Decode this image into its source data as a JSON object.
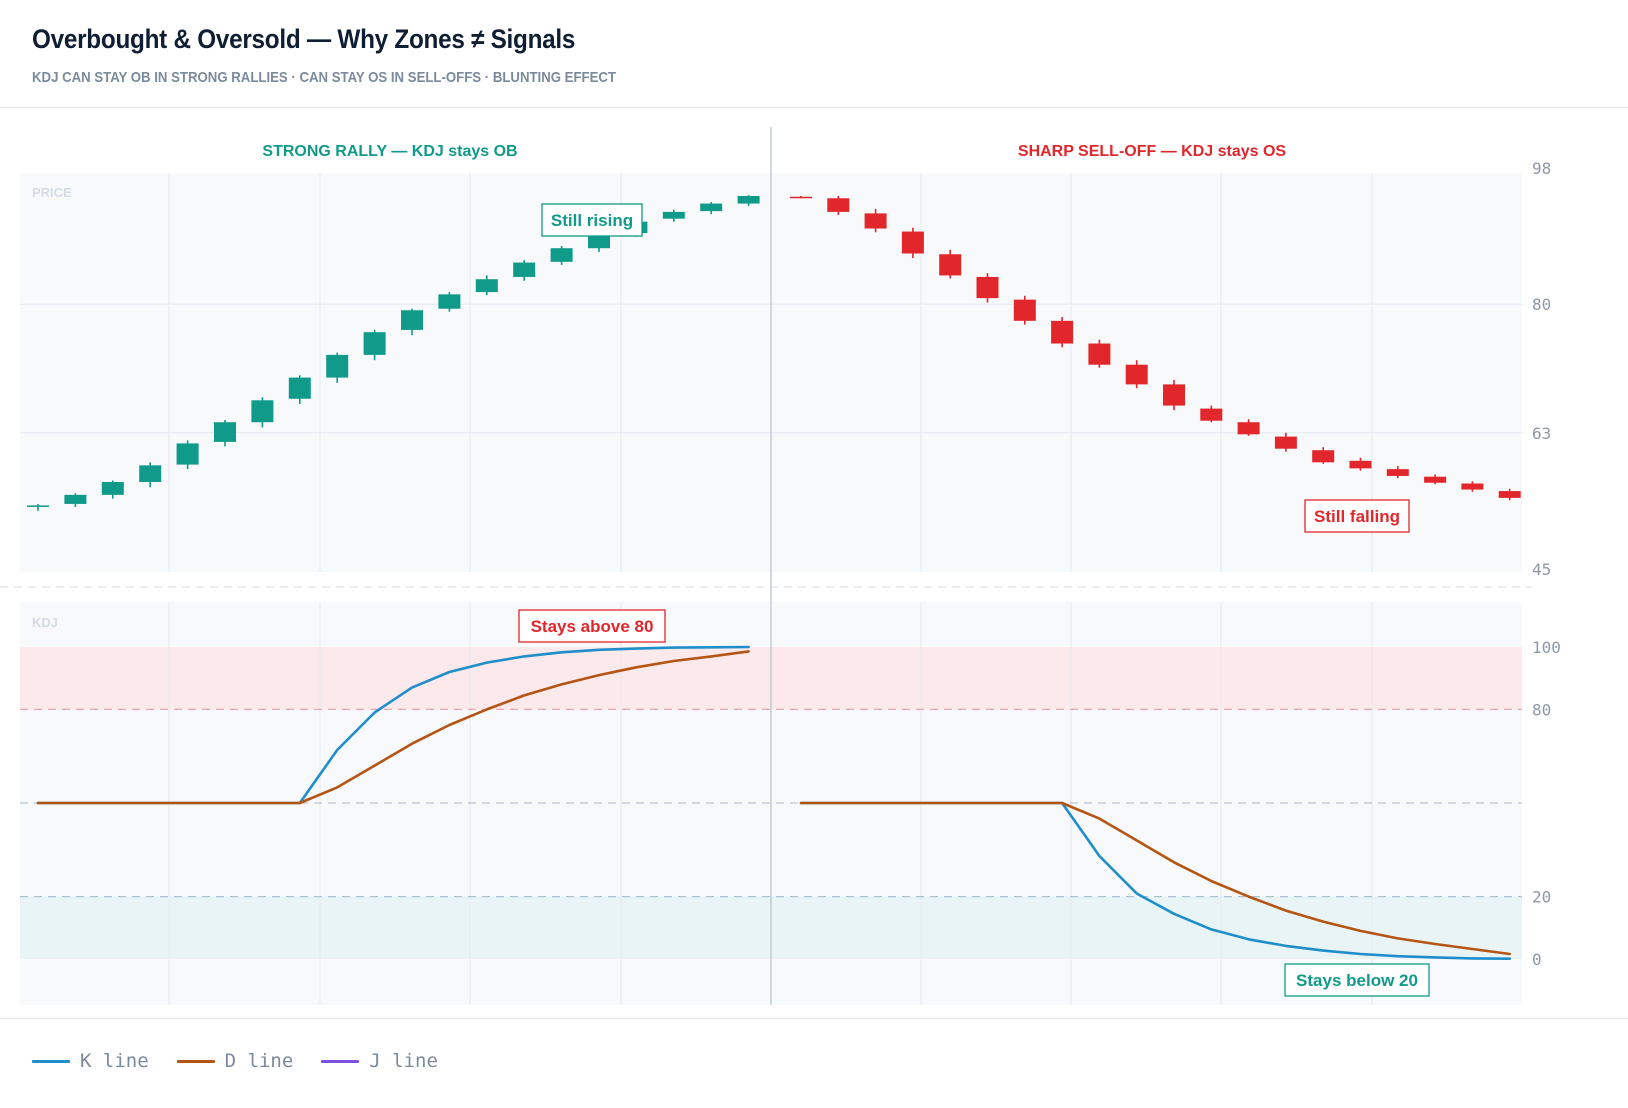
{
  "header": {
    "title": "Overbought & Oversold — Why Zones ≠ Signals",
    "subtitle": "KDJ CAN STAY OB IN STRONG RALLIES · CAN STAY OS IN SELL-OFFS · BLUNTING EFFECT"
  },
  "colors": {
    "up": "#109a89",
    "down": "#e2272c",
    "k_line": "#1f8ecb",
    "d_line": "#b45514",
    "j_line": "#7b4fe0",
    "ob_zone": "#fbe9ec",
    "os_zone": "#e8f4f6",
    "panel_bg": "#f7f9fb"
  },
  "legend": [
    {
      "label": "K line",
      "color": "#1f8ecb"
    },
    {
      "label": "D line",
      "color": "#b45514"
    },
    {
      "label": "J line",
      "color": "#7b4fe0"
    }
  ],
  "chart_data": [
    {
      "type": "candlestick",
      "panel": "price",
      "panel_label": "PRICE",
      "title_left": "STRONG RALLY — KDJ stays OB",
      "title_right": "SHARP SELL-OFF — KDJ stays OS",
      "ylim": [
        45,
        98
      ],
      "yticks": [
        98,
        80,
        63,
        45
      ],
      "rally": [
        {
          "o": 53.2,
          "h": 53.6,
          "l": 52.7,
          "c": 53.4
        },
        {
          "o": 53.6,
          "h": 55.0,
          "l": 53.2,
          "c": 54.8
        },
        {
          "o": 54.8,
          "h": 56.7,
          "l": 54.3,
          "c": 56.5
        },
        {
          "o": 56.5,
          "h": 59.1,
          "l": 55.8,
          "c": 58.7
        },
        {
          "o": 58.8,
          "h": 62.0,
          "l": 58.2,
          "c": 61.6
        },
        {
          "o": 61.8,
          "h": 64.7,
          "l": 61.2,
          "c": 64.4
        },
        {
          "o": 64.4,
          "h": 67.7,
          "l": 63.7,
          "c": 67.3
        },
        {
          "o": 67.5,
          "h": 70.6,
          "l": 66.8,
          "c": 70.3
        },
        {
          "o": 70.3,
          "h": 73.6,
          "l": 69.6,
          "c": 73.3
        },
        {
          "o": 73.3,
          "h": 76.6,
          "l": 72.6,
          "c": 76.3
        },
        {
          "o": 76.6,
          "h": 79.4,
          "l": 75.9,
          "c": 79.2
        },
        {
          "o": 79.4,
          "h": 81.6,
          "l": 79.0,
          "c": 81.3
        },
        {
          "o": 81.6,
          "h": 83.8,
          "l": 81.2,
          "c": 83.3
        },
        {
          "o": 83.6,
          "h": 85.8,
          "l": 83.1,
          "c": 85.5
        },
        {
          "o": 85.6,
          "h": 87.7,
          "l": 85.2,
          "c": 87.4
        },
        {
          "o": 87.4,
          "h": 89.6,
          "l": 86.9,
          "c": 89.3
        },
        {
          "o": 89.4,
          "h": 91.3,
          "l": 88.9,
          "c": 90.9
        },
        {
          "o": 91.3,
          "h": 92.5,
          "l": 90.9,
          "c": 92.2
        },
        {
          "o": 92.3,
          "h": 93.5,
          "l": 91.9,
          "c": 93.3
        },
        {
          "o": 93.3,
          "h": 94.4,
          "l": 93.0,
          "c": 94.3
        }
      ],
      "selloff": [
        {
          "o": 94.2,
          "h": 94.3,
          "l": 94.0,
          "c": 94.1
        },
        {
          "o": 94.0,
          "h": 94.3,
          "l": 91.8,
          "c": 92.2
        },
        {
          "o": 92.0,
          "h": 92.6,
          "l": 89.5,
          "c": 90.0
        },
        {
          "o": 89.6,
          "h": 90.1,
          "l": 86.1,
          "c": 86.7
        },
        {
          "o": 86.6,
          "h": 87.2,
          "l": 83.4,
          "c": 83.8
        },
        {
          "o": 83.6,
          "h": 84.1,
          "l": 80.2,
          "c": 80.8
        },
        {
          "o": 80.6,
          "h": 81.1,
          "l": 77.3,
          "c": 77.8
        },
        {
          "o": 77.8,
          "h": 78.3,
          "l": 74.3,
          "c": 74.8
        },
        {
          "o": 74.8,
          "h": 75.3,
          "l": 71.6,
          "c": 72.0
        },
        {
          "o": 72.0,
          "h": 72.6,
          "l": 68.9,
          "c": 69.4
        },
        {
          "o": 69.4,
          "h": 70.0,
          "l": 66.0,
          "c": 66.6
        },
        {
          "o": 66.2,
          "h": 66.6,
          "l": 64.4,
          "c": 64.6
        },
        {
          "o": 64.4,
          "h": 64.8,
          "l": 62.6,
          "c": 62.8
        },
        {
          "o": 62.5,
          "h": 63.0,
          "l": 60.5,
          "c": 60.9
        },
        {
          "o": 60.7,
          "h": 61.1,
          "l": 58.9,
          "c": 59.1
        },
        {
          "o": 59.3,
          "h": 59.7,
          "l": 58.0,
          "c": 58.3
        },
        {
          "o": 58.2,
          "h": 58.6,
          "l": 57.0,
          "c": 57.3
        },
        {
          "o": 57.2,
          "h": 57.5,
          "l": 56.2,
          "c": 56.4
        },
        {
          "o": 56.3,
          "h": 56.6,
          "l": 55.2,
          "c": 55.5
        },
        {
          "o": 55.3,
          "h": 55.6,
          "l": 54.1,
          "c": 54.4
        }
      ],
      "annotations": [
        {
          "text": "Still rising",
          "side": "rally",
          "style": "up"
        },
        {
          "text": "Still falling",
          "side": "selloff",
          "style": "down"
        }
      ]
    },
    {
      "type": "line",
      "panel": "kdj",
      "panel_label": "KDJ",
      "ylim": [
        -7,
        107
      ],
      "yticks": [
        100,
        80,
        20,
        0
      ],
      "ob_level": 80,
      "os_level": 20,
      "mid_level": 50,
      "series": [
        {
          "name": "K line",
          "rally": [
            50,
            50,
            50,
            50,
            50,
            50,
            50,
            50,
            67,
            79,
            87,
            92,
            95,
            97,
            98.3,
            99.1,
            99.5,
            99.8,
            99.9,
            100
          ],
          "selloff": [
            50,
            50,
            50,
            50,
            50,
            50,
            50,
            50,
            33,
            21,
            14.5,
            9.5,
            6.3,
            4.2,
            2.7,
            1.6,
            0.9,
            0.5,
            0.2,
            0.1
          ]
        },
        {
          "name": "D line",
          "rally": [
            50,
            50,
            50,
            50,
            50,
            50,
            50,
            50,
            55,
            62,
            69,
            75,
            80,
            84.5,
            88,
            91,
            93.5,
            95.5,
            97,
            98.6
          ],
          "selloff": [
            50,
            50,
            50,
            50,
            50,
            50,
            50,
            50,
            45,
            38,
            31,
            25,
            20,
            15.5,
            12,
            9,
            6.6,
            4.8,
            3.2,
            1.6
          ]
        }
      ],
      "annotations": [
        {
          "text": "Stays above 80",
          "side": "rally",
          "style": "down"
        },
        {
          "text": "Stays below 20",
          "side": "selloff",
          "style": "up"
        }
      ]
    }
  ]
}
